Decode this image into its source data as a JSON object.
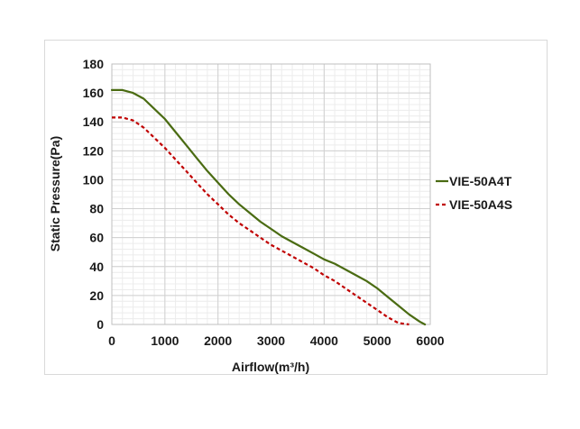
{
  "chart_data": {
    "type": "line",
    "title": "",
    "xlabel": "Airflow(m³/h)",
    "ylabel": "Static Pressure(Pa)",
    "xlim": [
      0,
      6000
    ],
    "ylim": [
      0,
      180
    ],
    "x_ticks": [
      0,
      1000,
      2000,
      3000,
      4000,
      5000,
      6000
    ],
    "y_ticks": [
      0,
      20,
      40,
      60,
      80,
      100,
      120,
      140,
      160,
      180
    ],
    "x_tick_labels": [
      "0",
      "1000",
      "2000",
      "3000",
      "4000",
      "5000",
      "6000"
    ],
    "y_tick_labels": [
      "0",
      "20",
      "40",
      "60",
      "80",
      "100",
      "120",
      "140",
      "160",
      "180"
    ],
    "grid": true,
    "legend_position": "right",
    "series": [
      {
        "name": "VIE-50A4T",
        "color": "#4a6b12",
        "line_style": "solid",
        "x": [
          0,
          200,
          400,
          600,
          800,
          1000,
          1200,
          1400,
          1600,
          1800,
          2000,
          2200,
          2400,
          2600,
          2800,
          3000,
          3200,
          3400,
          3600,
          3800,
          4000,
          4200,
          4400,
          4600,
          4800,
          5000,
          5200,
          5400,
          5600,
          5800,
          5900
        ],
        "y": [
          162,
          162,
          160,
          156,
          149,
          142,
          133,
          124,
          115,
          106,
          98,
          90,
          83,
          77,
          71,
          66,
          61,
          57,
          53,
          49,
          45,
          42,
          38,
          34,
          30,
          25,
          19,
          13,
          7,
          2,
          0
        ]
      },
      {
        "name": "VIE-50A4S",
        "color": "#c00000",
        "line_style": "dashed",
        "x": [
          0,
          200,
          400,
          600,
          800,
          1000,
          1200,
          1400,
          1600,
          1800,
          2000,
          2200,
          2400,
          2600,
          2800,
          3000,
          3200,
          3400,
          3600,
          3800,
          4000,
          4200,
          4400,
          4600,
          4800,
          5000,
          5200,
          5400,
          5600
        ],
        "y": [
          143,
          143,
          141,
          136,
          129,
          122,
          114,
          106,
          98,
          90,
          83,
          76,
          70,
          65,
          60,
          55,
          51,
          47,
          43,
          39,
          34,
          30,
          25,
          20,
          15,
          10,
          5,
          1,
          0
        ]
      }
    ]
  }
}
